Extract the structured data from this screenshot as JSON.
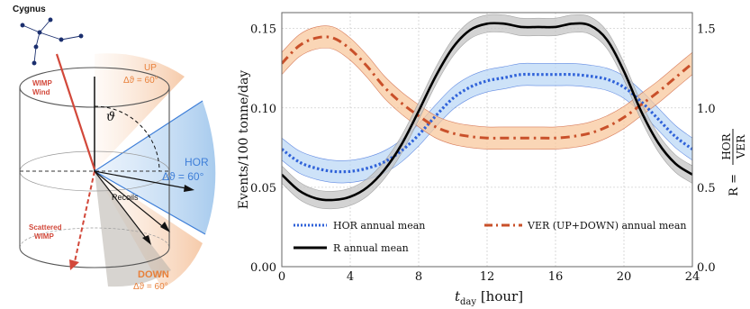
{
  "diagram": {
    "constellation": "Cygnus",
    "wimp_wind": "WIMP\nWind",
    "theta": "ϑ",
    "up_label": "UP",
    "up_angle": "Δϑ = 60°",
    "hor_label": "HOR",
    "hor_angle": "Δϑ = 60°",
    "down_label": "DOWN",
    "down_angle": "Δϑ = 60°",
    "recoils": "Recoils",
    "scattered": "Scattered\nWIMP",
    "colors": {
      "orange": "#e8803a",
      "blue": "#3f7fd8",
      "dark": "#222222"
    }
  },
  "chart_data": {
    "type": "line",
    "xlabel_main": "t",
    "xlabel_sub": "day",
    "xlabel_unit": " [hour]",
    "ylabel": "Events/100 tonne/day",
    "y2label_prefix": "R =",
    "y2label_num": "HOR",
    "y2label_den": "VER",
    "xlim": [
      0,
      24
    ],
    "ylim": [
      0.0,
      0.16
    ],
    "y2lim": [
      0.0,
      1.6
    ],
    "xticks": [
      0,
      4,
      8,
      12,
      16,
      20,
      24
    ],
    "xtick_labels": [
      "0",
      "4",
      "8",
      "12",
      "16",
      "20",
      "24"
    ],
    "yticks": [
      0.0,
      0.05,
      0.1,
      0.15
    ],
    "ytick_labels": [
      "0.00",
      "0.05",
      "0.10",
      "0.15"
    ],
    "y2ticks": [
      0.0,
      0.5,
      1.0,
      1.5
    ],
    "y2tick_labels": [
      "0.0",
      "0.5",
      "1.0",
      "1.5"
    ],
    "grid": true,
    "series": [
      {
        "name": "HOR annual mean",
        "axis": "left",
        "style": "dotted",
        "color": "#2f62d9",
        "band_color": "#bcd8f5",
        "x": [
          0,
          1,
          2,
          3,
          4,
          5,
          6,
          7,
          8,
          9,
          10,
          11,
          12,
          13,
          14,
          15,
          16,
          17,
          18,
          19,
          20,
          21,
          22,
          23,
          24
        ],
        "y": [
          0.074,
          0.066,
          0.062,
          0.06,
          0.06,
          0.062,
          0.066,
          0.073,
          0.083,
          0.095,
          0.106,
          0.113,
          0.117,
          0.119,
          0.121,
          0.121,
          0.121,
          0.121,
          0.12,
          0.118,
          0.113,
          0.104,
          0.093,
          0.082,
          0.074
        ],
        "band": 0.007
      },
      {
        "name": "VER (UP+DOWN) annual mean",
        "axis": "left",
        "style": "dashdot",
        "color": "#c9502a",
        "band_color": "#f8c89e",
        "x": [
          0,
          1,
          2,
          3,
          4,
          5,
          6,
          7,
          8,
          9,
          10,
          11,
          12,
          13,
          14,
          15,
          16,
          17,
          18,
          19,
          20,
          21,
          22,
          23,
          24
        ],
        "y": [
          0.128,
          0.139,
          0.144,
          0.144,
          0.137,
          0.126,
          0.113,
          0.103,
          0.095,
          0.088,
          0.084,
          0.082,
          0.081,
          0.081,
          0.081,
          0.081,
          0.081,
          0.082,
          0.084,
          0.088,
          0.094,
          0.102,
          0.11,
          0.119,
          0.128
        ],
        "band": 0.007
      },
      {
        "name": "R annual mean",
        "axis": "right",
        "style": "solid",
        "color": "#000000",
        "band_color": "#c4c4c4",
        "x": [
          0,
          1,
          2,
          3,
          4,
          5,
          6,
          7,
          8,
          9,
          10,
          11,
          12,
          13,
          14,
          15,
          16,
          17,
          18,
          19,
          20,
          21,
          22,
          23,
          24
        ],
        "y": [
          0.58,
          0.48,
          0.43,
          0.42,
          0.44,
          0.5,
          0.61,
          0.77,
          0.98,
          1.2,
          1.38,
          1.49,
          1.53,
          1.53,
          1.51,
          1.51,
          1.51,
          1.53,
          1.52,
          1.43,
          1.23,
          0.98,
          0.78,
          0.65,
          0.58
        ],
        "band": 0.055
      }
    ],
    "legend": [
      {
        "label": "HOR annual mean",
        "style": "dotted",
        "color": "#2f62d9"
      },
      {
        "label": "VER (UP+DOWN) annual mean",
        "style": "dashdot",
        "color": "#c9502a"
      },
      {
        "label": "R annual mean",
        "style": "solid",
        "color": "#000000"
      }
    ]
  }
}
